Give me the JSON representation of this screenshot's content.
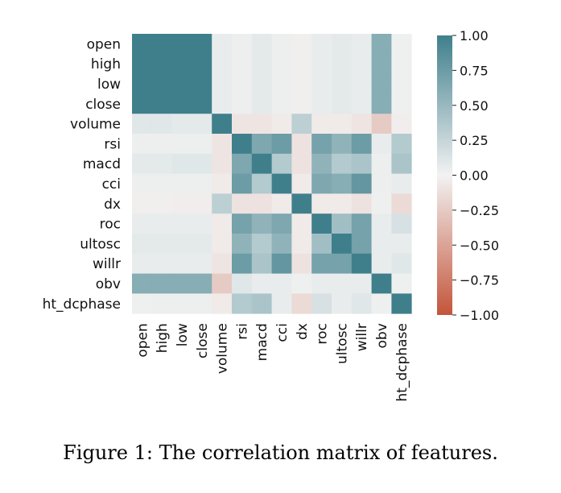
{
  "caption": "Figure 1: The correlation matrix of features.",
  "chart_data": {
    "type": "heatmap",
    "title": "",
    "xlabel": "",
    "ylabel": "",
    "labels": [
      "open",
      "high",
      "low",
      "close",
      "volume",
      "rsi",
      "macd",
      "cci",
      "dx",
      "roc",
      "ultosc",
      "willr",
      "obv",
      "ht_dcphase"
    ],
    "matrix": [
      [
        1.0,
        1.0,
        1.0,
        1.0,
        0.05,
        0.03,
        0.08,
        0.03,
        -0.02,
        0.05,
        0.08,
        0.05,
        0.6,
        0.02
      ],
      [
        1.0,
        1.0,
        1.0,
        1.0,
        0.05,
        0.03,
        0.08,
        0.03,
        -0.02,
        0.05,
        0.08,
        0.05,
        0.6,
        0.02
      ],
      [
        1.0,
        1.0,
        1.0,
        1.0,
        0.05,
        0.03,
        0.08,
        0.03,
        -0.02,
        0.05,
        0.08,
        0.05,
        0.6,
        0.02
      ],
      [
        1.0,
        1.0,
        1.0,
        1.0,
        0.05,
        0.03,
        0.08,
        0.03,
        -0.02,
        0.05,
        0.08,
        0.05,
        0.6,
        0.02
      ],
      [
        0.1,
        0.1,
        0.08,
        0.08,
        1.0,
        -0.08,
        -0.08,
        -0.05,
        0.3,
        -0.05,
        -0.05,
        -0.08,
        -0.25,
        -0.03
      ],
      [
        0.03,
        0.03,
        0.03,
        0.03,
        -0.08,
        1.0,
        0.65,
        0.75,
        -0.1,
        0.7,
        0.55,
        0.75,
        0.05,
        0.35
      ],
      [
        0.08,
        0.08,
        0.1,
        0.1,
        -0.08,
        0.65,
        1.0,
        0.35,
        -0.1,
        0.55,
        0.35,
        0.4,
        0.03,
        0.4
      ],
      [
        0.03,
        0.03,
        0.03,
        0.03,
        -0.05,
        0.75,
        0.35,
        1.0,
        -0.05,
        0.65,
        0.6,
        0.8,
        0.03,
        0.05
      ],
      [
        -0.02,
        -0.02,
        -0.03,
        -0.03,
        0.3,
        -0.1,
        -0.1,
        -0.05,
        1.0,
        -0.05,
        -0.05,
        -0.1,
        0.02,
        -0.15
      ],
      [
        0.05,
        0.05,
        0.05,
        0.05,
        -0.05,
        0.7,
        0.55,
        0.65,
        -0.05,
        1.0,
        0.45,
        0.7,
        0.05,
        0.15
      ],
      [
        0.08,
        0.08,
        0.08,
        0.08,
        -0.05,
        0.55,
        0.35,
        0.55,
        -0.05,
        0.45,
        1.0,
        0.7,
        0.05,
        0.05
      ],
      [
        0.05,
        0.05,
        0.05,
        0.05,
        -0.08,
        0.75,
        0.4,
        0.8,
        -0.1,
        0.7,
        0.7,
        1.0,
        0.05,
        0.1
      ],
      [
        0.6,
        0.6,
        0.6,
        0.6,
        -0.25,
        0.1,
        0.05,
        0.05,
        0.02,
        0.05,
        0.05,
        0.05,
        1.0,
        0.02
      ],
      [
        0.02,
        0.03,
        0.03,
        0.03,
        -0.05,
        0.35,
        0.4,
        0.05,
        -0.15,
        0.15,
        0.05,
        0.1,
        0.02,
        1.0
      ]
    ],
    "vmin": -1.0,
    "vmax": 1.0,
    "colorbar": {
      "ticks": [
        1.0,
        0.75,
        0.5,
        0.25,
        0.0,
        -0.25,
        -0.5,
        -0.75,
        -1.0
      ],
      "tick_labels": [
        "1.00",
        "0.75",
        "0.50",
        "0.25",
        "0.00",
        "−0.25",
        "−0.50",
        "−0.75",
        "−1.00"
      ]
    },
    "colors": {
      "low": "#c3553a",
      "mid": "#f2f2f2",
      "high": "#3f7f8c"
    },
    "grid": false,
    "legend": "colorbar-right"
  }
}
